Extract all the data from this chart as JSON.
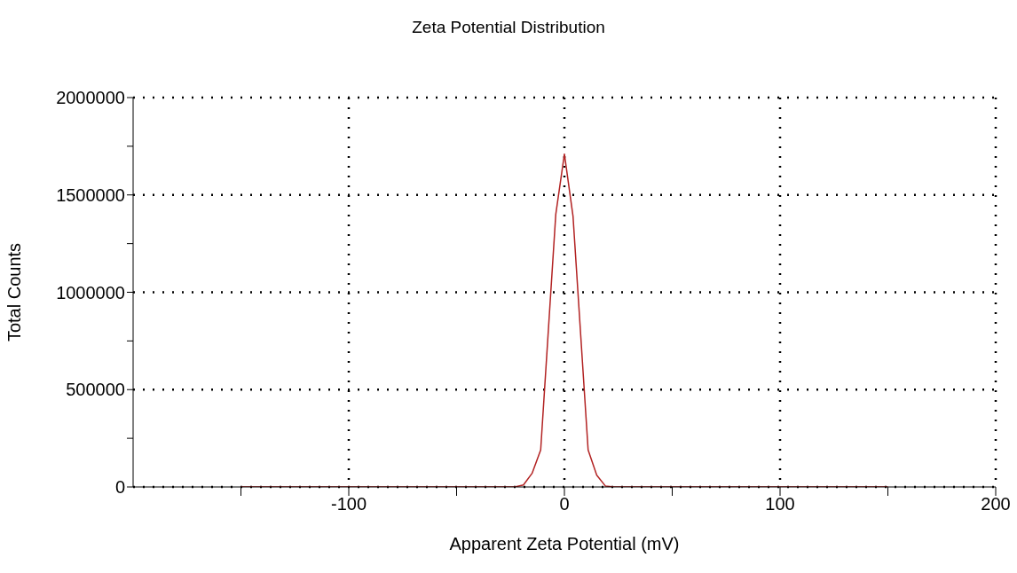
{
  "chart_data": {
    "type": "line",
    "title": "Zeta Potential Distribution",
    "xlabel": "Apparent Zeta Potential (mV)",
    "ylabel": "Total Counts",
    "x": [
      -150,
      -23,
      -19,
      -15,
      -11,
      -4,
      0,
      4,
      11,
      15,
      19,
      23,
      150
    ],
    "series": [
      {
        "color": "#b22222",
        "values": [
          0,
          0,
          10000,
          70000,
          190000,
          1400000,
          1710000,
          1390000,
          190000,
          60000,
          5000,
          0,
          0
        ]
      }
    ],
    "xlim": [
      -200,
      200
    ],
    "xticks": [
      {
        "value": -150,
        "label": null
      },
      -100,
      {
        "value": -50,
        "label": null
      },
      0,
      {
        "value": 50,
        "label": null
      },
      100,
      {
        "value": 150,
        "label": null
      },
      200
    ],
    "ylim": [
      0,
      2000000
    ],
    "yticks": [
      0,
      {
        "value": 250000,
        "label": null
      },
      500000,
      {
        "value": 750000,
        "label": null
      },
      1000000,
      {
        "value": 1250000,
        "label": null
      },
      1500000,
      {
        "value": 1750000,
        "label": null
      },
      2000000
    ],
    "grid": true,
    "marker": "none",
    "line_style": "solid"
  }
}
